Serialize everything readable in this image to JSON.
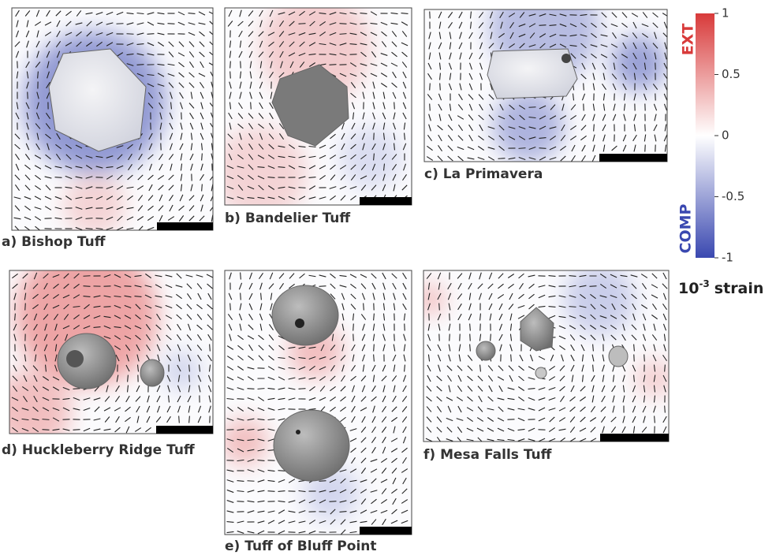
{
  "panels": [
    {
      "label": "a) Bishop Tuff"
    },
    {
      "label": "b) Bandelier Tuff"
    },
    {
      "label": "c) La Primavera"
    },
    {
      "label": "d) Huckleberry Ridge Tuff"
    },
    {
      "label": "e) Tuff of Bluff Point"
    },
    {
      "label": "f) Mesa Falls Tuff"
    }
  ],
  "colorbar": {
    "ticks": [
      1,
      0.5,
      0,
      -0.5,
      -1
    ],
    "top_label": "EXT",
    "bottom_label": "COMP",
    "unit": {
      "base": "10",
      "exponent": "-3",
      "text": "strain"
    }
  }
}
